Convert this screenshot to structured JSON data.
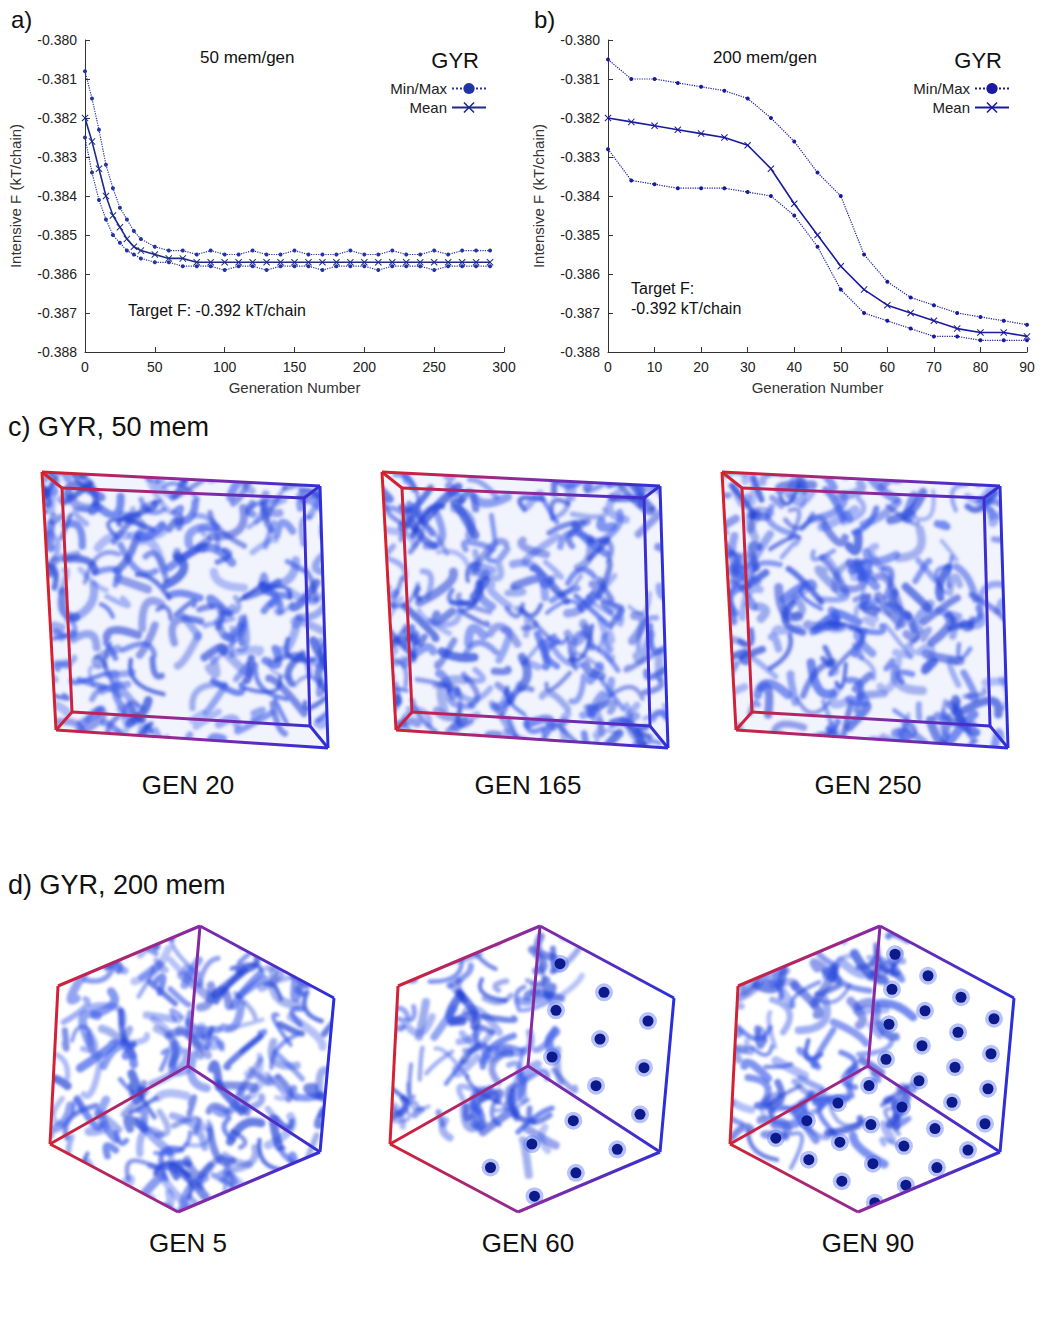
{
  "chart_data": [
    {
      "type": "line",
      "panel": "a)",
      "title": "50 mem/gen",
      "subtitle": "GYR",
      "annotations": [
        "Target F: -0.392 kT/chain"
      ],
      "x_label": "Generation Number",
      "y_label": "Intensive F (kT/chain)",
      "x": [
        0,
        5,
        10,
        15,
        20,
        25,
        30,
        35,
        40,
        50,
        60,
        70,
        80,
        90,
        100,
        110,
        120,
        130,
        140,
        150,
        160,
        170,
        180,
        190,
        200,
        210,
        220,
        230,
        240,
        250,
        260,
        270,
        280,
        290
      ],
      "series": [
        {
          "name": "Min/Max",
          "color": "#2233a6",
          "marker": "circle",
          "line_style": "dotted",
          "min": [
            -0.3825,
            -0.3834,
            -0.3841,
            -0.3846,
            -0.385,
            -0.3852,
            -0.3854,
            -0.3855,
            -0.3856,
            -0.3857,
            -0.3857,
            -0.3858,
            -0.3858,
            -0.3858,
            -0.3859,
            -0.3858,
            -0.3858,
            -0.3859,
            -0.3858,
            -0.3858,
            -0.3858,
            -0.3859,
            -0.3858,
            -0.3858,
            -0.3858,
            -0.3859,
            -0.3858,
            -0.3858,
            -0.3858,
            -0.3859,
            -0.3858,
            -0.3858,
            -0.3858,
            -0.3858
          ],
          "max": [
            -0.3808,
            -0.3815,
            -0.3823,
            -0.3832,
            -0.3838,
            -0.3843,
            -0.3846,
            -0.3849,
            -0.3851,
            -0.3853,
            -0.3854,
            -0.3854,
            -0.3855,
            -0.3854,
            -0.3855,
            -0.3855,
            -0.3854,
            -0.3855,
            -0.3855,
            -0.3854,
            -0.3855,
            -0.3855,
            -0.3855,
            -0.3854,
            -0.3855,
            -0.3855,
            -0.3854,
            -0.3855,
            -0.3855,
            -0.3854,
            -0.3855,
            -0.3854,
            -0.3854,
            -0.3854
          ]
        },
        {
          "name": "Mean",
          "color": "#1c2a88",
          "marker": "x",
          "line_style": "solid",
          "values": [
            -0.382,
            -0.3826,
            -0.3833,
            -0.384,
            -0.3845,
            -0.3848,
            -0.3851,
            -0.3853,
            -0.3854,
            -0.3855,
            -0.3856,
            -0.3856,
            -0.3857,
            -0.3857,
            -0.3857,
            -0.3857,
            -0.3857,
            -0.3857,
            -0.3857,
            -0.3857,
            -0.3857,
            -0.3857,
            -0.3857,
            -0.3857,
            -0.3857,
            -0.3857,
            -0.3857,
            -0.3857,
            -0.3857,
            -0.3857,
            -0.3857,
            -0.3857,
            -0.3857,
            -0.3857
          ]
        }
      ],
      "xlim": [
        0,
        300
      ],
      "xticks": [
        0,
        50,
        100,
        150,
        200,
        250,
        300
      ],
      "ylim": [
        -0.388,
        -0.38
      ],
      "yticks": [
        -0.388,
        -0.387,
        -0.386,
        -0.385,
        -0.384,
        -0.383,
        -0.382,
        -0.381,
        {
          "value": -0.38,
          "label": "-0.380"
        }
      ],
      "grid": false,
      "legend": "top-right"
    },
    {
      "type": "line",
      "panel": "b)",
      "title": "200 mem/gen",
      "subtitle": "GYR",
      "annotations": [
        "Target F: -0.392 kT/chain"
      ],
      "x_label": "Generation Number",
      "y_label": "Intensive F (kT/chain)",
      "x": [
        0,
        5,
        10,
        15,
        20,
        25,
        30,
        35,
        40,
        45,
        50,
        55,
        60,
        65,
        70,
        75,
        80,
        85,
        90
      ],
      "series": [
        {
          "name": "Min/Max",
          "color": "#1a1aa0",
          "marker": "circle",
          "line_style": "dotted",
          "min": [
            -0.3828,
            -0.3836,
            -0.3837,
            -0.3838,
            -0.3838,
            -0.3838,
            -0.3839,
            -0.384,
            -0.3845,
            -0.3853,
            -0.3864,
            -0.387,
            -0.3872,
            -0.3874,
            -0.3876,
            -0.3876,
            -0.3877,
            -0.3877,
            -0.3877
          ],
          "max": [
            -0.3805,
            -0.381,
            -0.381,
            -0.3811,
            -0.3812,
            -0.3813,
            -0.3815,
            -0.382,
            -0.3826,
            -0.3834,
            -0.384,
            -0.3855,
            -0.3862,
            -0.3866,
            -0.3868,
            -0.387,
            -0.3871,
            -0.3872,
            -0.3873
          ]
        },
        {
          "name": "Mean",
          "color": "#1a1aa0",
          "marker": "x",
          "line_style": "solid",
          "values": [
            -0.382,
            -0.3821,
            -0.3822,
            -0.3823,
            -0.3824,
            -0.3825,
            -0.3827,
            -0.3833,
            -0.3842,
            -0.385,
            -0.3858,
            -0.3864,
            -0.3868,
            -0.387,
            -0.3872,
            -0.3874,
            -0.3875,
            -0.3875,
            -0.3876
          ]
        }
      ],
      "xlim": [
        0,
        90
      ],
      "xticks": [
        0,
        10,
        20,
        30,
        40,
        50,
        60,
        70,
        80,
        90
      ],
      "ylim": [
        -0.388,
        -0.38
      ],
      "yticks": [
        -0.388,
        -0.387,
        -0.386,
        -0.385,
        -0.384,
        -0.383,
        -0.382,
        -0.381,
        {
          "value": -0.38,
          "label": "-0.380"
        }
      ],
      "grid": false,
      "legend": "top-right"
    }
  ],
  "panels": [
    {
      "title": "c) GYR, 50 mem",
      "images": [
        "GEN 20",
        "GEN 165",
        "GEN 250"
      ]
    },
    {
      "title": "d) GYR, 200 mem",
      "images": [
        "GEN 5",
        "GEN 60",
        "GEN 90"
      ]
    }
  ]
}
